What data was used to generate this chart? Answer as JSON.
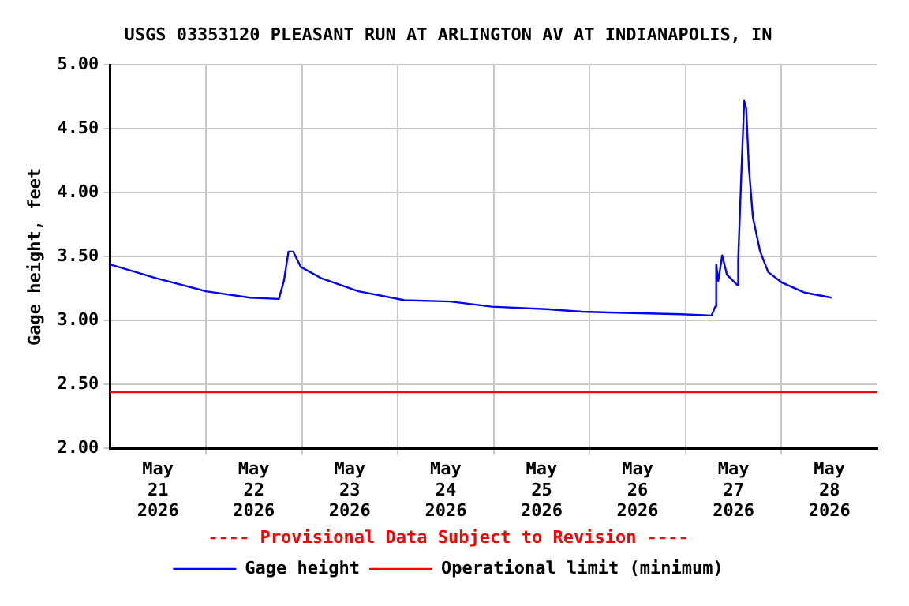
{
  "chart_data": {
    "type": "line",
    "title": "USGS 03353120 PLEASANT RUN AT ARLINGTON AV AT INDIANAPOLIS, IN",
    "ylabel": "Gage height, feet",
    "annotations": [
      "---- Provisional Data Subject to Revision ----"
    ],
    "x": [
      "2026-05-21T00:00",
      "2026-05-21T11:45",
      "2026-05-22T00:00",
      "2026-05-22T11:00",
      "2026-05-22T18:15",
      "2026-05-22T19:30",
      "2026-05-22T20:40",
      "2026-05-22T21:50",
      "2026-05-22T23:45",
      "2026-05-23T05:00",
      "2026-05-23T14:10",
      "2026-05-24T01:40",
      "2026-05-24T13:10",
      "2026-05-24T23:30",
      "2026-05-25T13:10",
      "2026-05-25T22:05",
      "2026-05-26T22:50",
      "2026-05-27T06:30",
      "2026-05-27T07:25",
      "2026-05-27T07:40",
      "2026-05-27T08:10",
      "2026-05-27T09:10",
      "2026-05-27T10:20",
      "2026-05-27T12:55",
      "2026-05-27T13:10",
      "2026-05-27T13:55",
      "2026-05-27T14:40",
      "2026-05-27T15:10",
      "2026-05-27T15:50",
      "2026-05-27T16:50",
      "2026-05-27T18:40",
      "2026-05-27T20:40",
      "2026-05-28T00:00",
      "2026-05-28T05:45",
      "2026-05-28T12:30"
    ],
    "series": [
      {
        "name": "Gage height",
        "color": "#0000ff",
        "values": [
          3.44,
          3.33,
          3.23,
          3.18,
          3.17,
          3.31,
          3.54,
          3.54,
          3.42,
          3.33,
          3.23,
          3.16,
          3.15,
          3.11,
          3.09,
          3.07,
          3.05,
          3.04,
          3.11,
          3.44,
          3.31,
          3.51,
          3.36,
          3.28,
          3.48,
          4.12,
          4.72,
          4.66,
          4.2,
          3.81,
          3.54,
          3.38,
          3.3,
          3.22,
          3.18
        ]
      }
    ],
    "ref_lines": [
      {
        "axis": "y",
        "value": 2.44,
        "label": "Operational limit (minimum)",
        "color": "#ff0000"
      }
    ],
    "xlim": [
      "2026-05-21T00:00",
      "2026-05-29T00:00"
    ],
    "xticks": [
      {
        "value": "2026-05-21T12:00",
        "label": "May\n21\n2026"
      },
      {
        "value": "2026-05-22T00:00",
        "label": null
      },
      {
        "value": "2026-05-22T12:00",
        "label": "May\n22\n2026"
      },
      {
        "value": "2026-05-23T00:00",
        "label": null
      },
      {
        "value": "2026-05-23T12:00",
        "label": "May\n23\n2026"
      },
      {
        "value": "2026-05-24T00:00",
        "label": null
      },
      {
        "value": "2026-05-24T12:00",
        "label": "May\n24\n2026"
      },
      {
        "value": "2026-05-25T00:00",
        "label": null
      },
      {
        "value": "2026-05-25T12:00",
        "label": "May\n25\n2026"
      },
      {
        "value": "2026-05-26T00:00",
        "label": null
      },
      {
        "value": "2026-05-26T12:00",
        "label": "May\n26\n2026"
      },
      {
        "value": "2026-05-27T00:00",
        "label": null
      },
      {
        "value": "2026-05-27T12:00",
        "label": "May\n27\n2026"
      },
      {
        "value": "2026-05-28T00:00",
        "label": null
      },
      {
        "value": "2026-05-28T12:00",
        "label": "May\n28\n2026"
      }
    ],
    "ylim": [
      2,
      5
    ],
    "yticks": [
      {
        "value": 2,
        "label": "2.00"
      },
      {
        "value": 2.5,
        "label": "2.50"
      },
      {
        "value": 3,
        "label": "3.00"
      },
      {
        "value": 3.5,
        "label": "3.50"
      },
      {
        "value": 4,
        "label": "4.00"
      },
      {
        "value": 4.5,
        "label": "4.50"
      },
      {
        "value": 5,
        "label": "5.00"
      }
    ],
    "grid": true,
    "legend": "bottom",
    "marker": "none",
    "line_style": "solid"
  }
}
